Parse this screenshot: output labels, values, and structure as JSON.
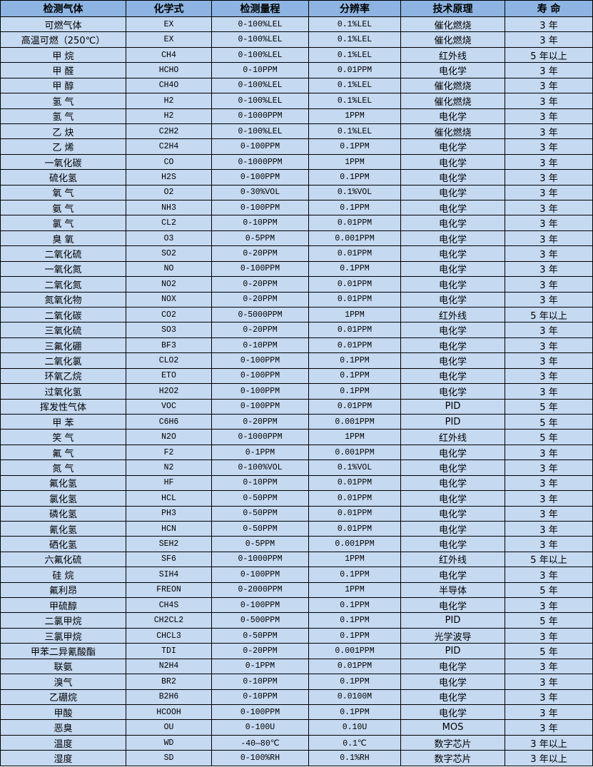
{
  "table": {
    "headers": [
      "检测气体",
      "化学式",
      "检测量程",
      "分辨率",
      "技术原理",
      "寿 命"
    ],
    "rows": [
      [
        "可燃气体",
        "EX",
        "0-100%LEL",
        "0.1%LEL",
        "催化燃烧",
        "3 年"
      ],
      [
        "高温可燃（250℃）",
        "EX",
        "0-100%LEL",
        "0.1%LEL",
        "催化燃烧",
        "3 年"
      ],
      [
        "甲 烷",
        "CH4",
        "0-100%LEL",
        "0.1%LEL",
        "红外线",
        "5 年以上"
      ],
      [
        "甲 醛",
        "HCHO",
        "0-10PPM",
        "0.01PPM",
        "电化学",
        "3 年"
      ],
      [
        "甲 醇",
        "CH4O",
        "0-100%LEL",
        "0.1%LEL",
        "催化燃烧",
        "3 年"
      ],
      [
        "氢 气",
        "H2",
        "0-100%LEL",
        "0.1%LEL",
        "催化燃烧",
        "3 年"
      ],
      [
        "氢 气",
        "H2",
        "0-1000PPM",
        "1PPM",
        "电化学",
        "3 年"
      ],
      [
        "乙 炔",
        "C2H2",
        "0-100%LEL",
        "0.1%LEL",
        "催化燃烧",
        "3 年"
      ],
      [
        "乙 烯",
        "C2H4",
        "0-100PPM",
        "0.1PPM",
        "电化学",
        "3 年"
      ],
      [
        "一氧化碳",
        "CO",
        "0-1000PPM",
        "1PPM",
        "电化学",
        "3 年"
      ],
      [
        "硫化氢",
        "H2S",
        "0-100PPM",
        "0.1PPM",
        "电化学",
        "3 年"
      ],
      [
        "氧 气",
        "O2",
        "0-30%VOL",
        "0.1%VOL",
        "电化学",
        "3 年"
      ],
      [
        "氨 气",
        "NH3",
        "0-100PPM",
        "0.1PPM",
        "电化学",
        "3 年"
      ],
      [
        "氯 气",
        "CL2",
        "0-10PPM",
        "0.01PPM",
        "电化学",
        "3 年"
      ],
      [
        "臭 氧",
        "O3",
        "0-5PPM",
        "0.001PPM",
        "电化学",
        "3 年"
      ],
      [
        "二氧化硫",
        "SO2",
        "0-20PPM",
        "0.01PPM",
        "电化学",
        "3 年"
      ],
      [
        "一氧化氮",
        "NO",
        "0-100PPM",
        "0.1PPM",
        "电化学",
        "3 年"
      ],
      [
        "二氧化氮",
        "NO2",
        "0-20PPM",
        "0.01PPM",
        "电化学",
        "3 年"
      ],
      [
        "氮氧化物",
        "NOX",
        "0-20PPM",
        "0.01PPM",
        "电化学",
        "3 年"
      ],
      [
        "二氧化碳",
        "CO2",
        "0-5000PPM",
        "1PPM",
        "红外线",
        "5 年以上"
      ],
      [
        "三氧化硫",
        "SO3",
        "0-20PPM",
        "0.01PPM",
        "电化学",
        "3 年"
      ],
      [
        "三氟化硼",
        "BF3",
        "0-10PPM",
        "0.01PPM",
        "电化学",
        "3 年"
      ],
      [
        "二氧化氯",
        "CLO2",
        "0-100PPM",
        "0.1PPM",
        "电化学",
        "3 年"
      ],
      [
        "环氧乙烷",
        "ETO",
        "0-100PPM",
        "0.1PPM",
        "电化学",
        "3 年"
      ],
      [
        "过氧化氢",
        "H2O2",
        "0-100PPM",
        "0.1PPM",
        "电化学",
        "3 年"
      ],
      [
        "挥发性气体",
        "VOC",
        "0-100PPM",
        "0.01PPM",
        "PID",
        "5 年"
      ],
      [
        "甲 苯",
        "C6H6",
        "0-20PPM",
        "0.001PPM",
        "PID",
        "5 年"
      ],
      [
        "笑 气",
        "N2O",
        "0-1000PPM",
        "1PPM",
        "红外线",
        "5 年"
      ],
      [
        "氟 气",
        "F2",
        "0-1PPM",
        "0.001PPM",
        "电化学",
        "3 年"
      ],
      [
        "氮 气",
        "N2",
        "0-100%VOL",
        "0.1%VOL",
        "电化学",
        "3 年"
      ],
      [
        "氟化氢",
        "HF",
        "0-10PPM",
        "0.01PPM",
        "电化学",
        "3 年"
      ],
      [
        "氯化氢",
        "HCL",
        "0-50PPM",
        "0.01PPM",
        "电化学",
        "3 年"
      ],
      [
        "磷化氢",
        "PH3",
        "0-50PPM",
        "0.01PPM",
        "电化学",
        "3 年"
      ],
      [
        "氰化氢",
        "HCN",
        "0-50PPM",
        "0.01PPM",
        "电化学",
        "3 年"
      ],
      [
        "硒化氢",
        "SEH2",
        "0-5PPM",
        "0.001PPM",
        "电化学",
        "3 年"
      ],
      [
        "六氟化硫",
        "SF6",
        "0-1000PPM",
        "1PPM",
        "红外线",
        "5 年以上"
      ],
      [
        "硅 烷",
        "SIH4",
        "0-100PPM",
        "0.1PPM",
        "电化学",
        "3 年"
      ],
      [
        "氟利昂",
        "FREON",
        "0-2000PPM",
        "1PPM",
        "半导体",
        "5 年"
      ],
      [
        "甲硫醇",
        "CH4S",
        "0-100PPM",
        "0.1PPM",
        "电化学",
        "3 年"
      ],
      [
        "二氯甲烷",
        "CH2CL2",
        "0-500PPM",
        "0.1PPM",
        "PID",
        "5 年"
      ],
      [
        "三氯甲烷",
        "CHCL3",
        "0-50PPM",
        "0.1PPM",
        "光学波导",
        "3 年"
      ],
      [
        "甲苯二异氰酸酯",
        "TDI",
        "0-20PPM",
        "0.001PPM",
        "PID",
        "5 年"
      ],
      [
        "联氨",
        "N2H4",
        "0-1PPM",
        "0.01PPM",
        "电化学",
        "3 年"
      ],
      [
        "溴气",
        "BR2",
        "0-10PPM",
        "0.1PPM",
        "电化学",
        "3 年"
      ],
      [
        "乙硼烷",
        "B2H6",
        "0-10PPM",
        "0.0100M",
        "电化学",
        "3 年"
      ],
      [
        "甲酸",
        "HCOOH",
        "0-100PPM",
        "0.1PPM",
        "电化学",
        "3 年"
      ],
      [
        "恶臭",
        "OU",
        "0-100U",
        "0.10U",
        "MOS",
        "3 年"
      ],
      [
        "温度",
        "WD",
        "-40—80℃",
        "0.1℃",
        "数字芯片",
        "3 年以上"
      ],
      [
        "湿度",
        "SD",
        "0-100%RH",
        "0.1%RH",
        "数字芯片",
        "3 年以上"
      ]
    ]
  },
  "colors": {
    "header_bg": "#8db4e2",
    "row_bg": "#c5d9f1",
    "border": "#000000"
  }
}
